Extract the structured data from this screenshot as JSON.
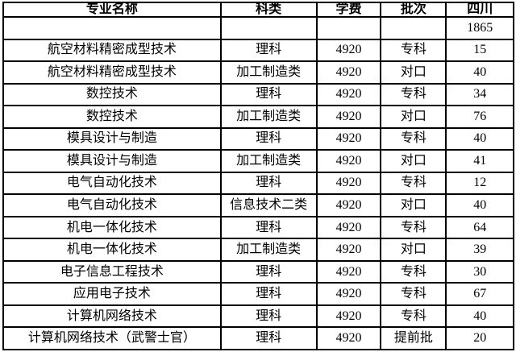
{
  "colors": {
    "border": "#000000",
    "text": "#000000",
    "background": "#ffffff"
  },
  "table": {
    "columns": [
      "专业名称",
      "科类",
      "学费",
      "批次",
      "四川"
    ],
    "rows": [
      [
        "",
        "",
        "",
        "",
        "1865"
      ],
      [
        "航空材料精密成型技术",
        "理科",
        "4920",
        "专科",
        "15"
      ],
      [
        "航空材料精密成型技术",
        "加工制造类",
        "4920",
        "对口",
        "40"
      ],
      [
        "数控技术",
        "理科",
        "4920",
        "专科",
        "34"
      ],
      [
        "数控技术",
        "加工制造类",
        "4920",
        "对口",
        "76"
      ],
      [
        "模具设计与制造",
        "理科",
        "4920",
        "专科",
        "40"
      ],
      [
        "模具设计与制造",
        "加工制造类",
        "4920",
        "对口",
        "41"
      ],
      [
        "电气自动化技术",
        "理科",
        "4920",
        "专科",
        "12"
      ],
      [
        "电气自动化技术",
        "信息技术二类",
        "4920",
        "对口",
        "40"
      ],
      [
        "机电一体化技术",
        "理科",
        "4920",
        "专科",
        "64"
      ],
      [
        "机电一体化技术",
        "加工制造类",
        "4920",
        "对口",
        "39"
      ],
      [
        "电子信息工程技术",
        "理科",
        "4920",
        "专科",
        "30"
      ],
      [
        "应用电子技术",
        "理科",
        "4920",
        "专科",
        "67"
      ],
      [
        "计算机网络技术",
        "理科",
        "4920",
        "专科",
        "40"
      ],
      [
        "计算机网络技术（武警士官）",
        "理科",
        "4920",
        "提前批",
        "20"
      ]
    ]
  }
}
